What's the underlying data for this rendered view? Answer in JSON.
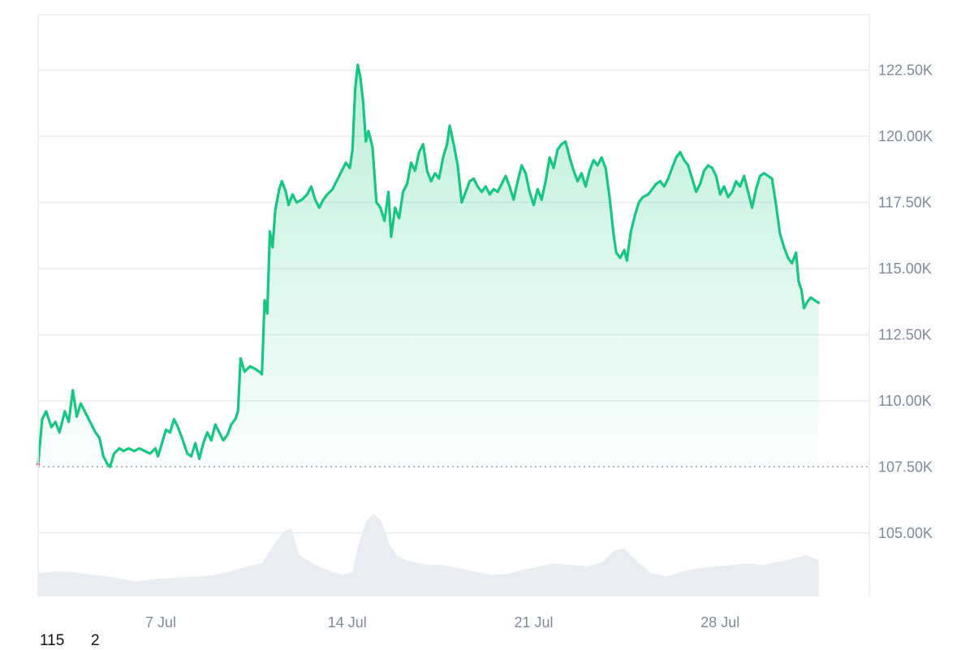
{
  "colors": {
    "line": "#16c784",
    "area_top": "#16c784",
    "grid": "#e9ecf1",
    "baseline": "#9aa2b1",
    "volume": "#e9ecf1",
    "start_marker": "#ea3943"
  },
  "footer": {
    "value_a": "115",
    "value_b": "2"
  },
  "chart_data": {
    "type": "area",
    "title": "",
    "xlabel": "",
    "ylabel": "",
    "ylim": [
      102600,
      124600
    ],
    "grid": true,
    "baseline_value": 107500,
    "x_ticks": [
      {
        "label": "7 Jul",
        "day": 7
      },
      {
        "label": "14 Jul",
        "day": 14
      },
      {
        "label": "21 Jul",
        "day": 21
      },
      {
        "label": "28 Jul",
        "day": 28
      }
    ],
    "y_ticks": [
      {
        "label": "122.50K",
        "value": 122500
      },
      {
        "label": "120.00K",
        "value": 120000
      },
      {
        "label": "117.50K",
        "value": 117500
      },
      {
        "label": "115.00K",
        "value": 115000
      },
      {
        "label": "112.50K",
        "value": 112500
      },
      {
        "label": "110.00K",
        "value": 110000
      },
      {
        "label": "107.50K",
        "value": 107500
      },
      {
        "label": "105.00K",
        "value": 105000
      }
    ],
    "x_range_days": [
      2.4,
      33.6
    ],
    "series": [
      {
        "type": "line",
        "points": [
          [
            2.4,
            107600
          ],
          [
            2.55,
            109300
          ],
          [
            2.7,
            109600
          ],
          [
            2.9,
            109000
          ],
          [
            3.05,
            109200
          ],
          [
            3.2,
            108800
          ],
          [
            3.4,
            109600
          ],
          [
            3.55,
            109200
          ],
          [
            3.7,
            110400
          ],
          [
            3.85,
            109400
          ],
          [
            4.0,
            109900
          ],
          [
            4.15,
            109600
          ],
          [
            4.35,
            109200
          ],
          [
            4.55,
            108800
          ],
          [
            4.7,
            108600
          ],
          [
            4.85,
            107900
          ],
          [
            5.0,
            107600
          ],
          [
            5.1,
            107500
          ],
          [
            5.25,
            108000
          ],
          [
            5.45,
            108200
          ],
          [
            5.6,
            108100
          ],
          [
            5.8,
            108200
          ],
          [
            6.0,
            108100
          ],
          [
            6.2,
            108200
          ],
          [
            6.4,
            108100
          ],
          [
            6.6,
            108000
          ],
          [
            6.8,
            108200
          ],
          [
            6.9,
            107900
          ],
          [
            7.05,
            108400
          ],
          [
            7.2,
            108900
          ],
          [
            7.35,
            108800
          ],
          [
            7.5,
            109300
          ],
          [
            7.65,
            109000
          ],
          [
            7.8,
            108600
          ],
          [
            8.0,
            108000
          ],
          [
            8.15,
            107900
          ],
          [
            8.3,
            108400
          ],
          [
            8.45,
            107800
          ],
          [
            8.6,
            108400
          ],
          [
            8.75,
            108800
          ],
          [
            8.9,
            108500
          ],
          [
            9.05,
            109100
          ],
          [
            9.2,
            108800
          ],
          [
            9.35,
            108500
          ],
          [
            9.5,
            108700
          ],
          [
            9.65,
            109100
          ],
          [
            9.8,
            109300
          ],
          [
            9.9,
            109600
          ],
          [
            10.0,
            111600
          ],
          [
            10.15,
            111100
          ],
          [
            10.35,
            111300
          ],
          [
            10.55,
            111200
          ],
          [
            10.7,
            111100
          ],
          [
            10.8,
            111000
          ],
          [
            10.9,
            113800
          ],
          [
            11.0,
            113300
          ],
          [
            11.1,
            116400
          ],
          [
            11.2,
            115800
          ],
          [
            11.3,
            117200
          ],
          [
            11.45,
            118000
          ],
          [
            11.55,
            118300
          ],
          [
            11.7,
            117900
          ],
          [
            11.8,
            117400
          ],
          [
            11.95,
            117800
          ],
          [
            12.1,
            117500
          ],
          [
            12.3,
            117600
          ],
          [
            12.5,
            117800
          ],
          [
            12.65,
            118100
          ],
          [
            12.8,
            117600
          ],
          [
            12.95,
            117300
          ],
          [
            13.1,
            117600
          ],
          [
            13.25,
            117800
          ],
          [
            13.45,
            118000
          ],
          [
            13.6,
            118300
          ],
          [
            13.8,
            118700
          ],
          [
            13.95,
            119000
          ],
          [
            14.1,
            118800
          ],
          [
            14.2,
            119500
          ],
          [
            14.3,
            121800
          ],
          [
            14.4,
            122700
          ],
          [
            14.5,
            122200
          ],
          [
            14.6,
            121300
          ],
          [
            14.7,
            119800
          ],
          [
            14.8,
            120200
          ],
          [
            14.95,
            119600
          ],
          [
            15.1,
            117500
          ],
          [
            15.25,
            117300
          ],
          [
            15.4,
            116800
          ],
          [
            15.55,
            117900
          ],
          [
            15.65,
            116200
          ],
          [
            15.8,
            117300
          ],
          [
            15.95,
            116900
          ],
          [
            16.1,
            117900
          ],
          [
            16.25,
            118200
          ],
          [
            16.4,
            119000
          ],
          [
            16.55,
            118700
          ],
          [
            16.7,
            119400
          ],
          [
            16.85,
            119700
          ],
          [
            17.0,
            118700
          ],
          [
            17.15,
            118300
          ],
          [
            17.3,
            118600
          ],
          [
            17.45,
            118400
          ],
          [
            17.6,
            119200
          ],
          [
            17.75,
            119700
          ],
          [
            17.85,
            120400
          ],
          [
            18.0,
            119700
          ],
          [
            18.15,
            118900
          ],
          [
            18.3,
            117500
          ],
          [
            18.45,
            117900
          ],
          [
            18.6,
            118300
          ],
          [
            18.75,
            118400
          ],
          [
            18.9,
            118100
          ],
          [
            19.05,
            117900
          ],
          [
            19.2,
            118100
          ],
          [
            19.35,
            117800
          ],
          [
            19.5,
            118000
          ],
          [
            19.65,
            117900
          ],
          [
            19.8,
            118200
          ],
          [
            19.95,
            118500
          ],
          [
            20.1,
            118100
          ],
          [
            20.25,
            117600
          ],
          [
            20.4,
            118300
          ],
          [
            20.55,
            118900
          ],
          [
            20.7,
            118600
          ],
          [
            20.85,
            117900
          ],
          [
            21.0,
            117400
          ],
          [
            21.15,
            118000
          ],
          [
            21.3,
            117600
          ],
          [
            21.45,
            118300
          ],
          [
            21.6,
            119200
          ],
          [
            21.75,
            118800
          ],
          [
            21.9,
            119500
          ],
          [
            22.05,
            119700
          ],
          [
            22.2,
            119800
          ],
          [
            22.35,
            119200
          ],
          [
            22.5,
            118700
          ],
          [
            22.65,
            118300
          ],
          [
            22.8,
            118600
          ],
          [
            22.95,
            118100
          ],
          [
            23.1,
            118700
          ],
          [
            23.25,
            119100
          ],
          [
            23.4,
            118900
          ],
          [
            23.55,
            119200
          ],
          [
            23.7,
            118800
          ],
          [
            23.85,
            117700
          ],
          [
            24.0,
            116300
          ],
          [
            24.1,
            115600
          ],
          [
            24.25,
            115400
          ],
          [
            24.4,
            115700
          ],
          [
            24.5,
            115300
          ],
          [
            24.65,
            116400
          ],
          [
            24.8,
            117000
          ],
          [
            24.95,
            117500
          ],
          [
            25.1,
            117700
          ],
          [
            25.3,
            117800
          ],
          [
            25.45,
            118000
          ],
          [
            25.6,
            118200
          ],
          [
            25.75,
            118300
          ],
          [
            25.9,
            118100
          ],
          [
            26.05,
            118400
          ],
          [
            26.2,
            118800
          ],
          [
            26.35,
            119200
          ],
          [
            26.5,
            119400
          ],
          [
            26.65,
            119100
          ],
          [
            26.8,
            118900
          ],
          [
            26.95,
            118400
          ],
          [
            27.1,
            117900
          ],
          [
            27.25,
            118200
          ],
          [
            27.4,
            118700
          ],
          [
            27.55,
            118900
          ],
          [
            27.7,
            118800
          ],
          [
            27.85,
            118500
          ],
          [
            28.0,
            117800
          ],
          [
            28.15,
            118100
          ],
          [
            28.3,
            117700
          ],
          [
            28.45,
            117900
          ],
          [
            28.6,
            118300
          ],
          [
            28.75,
            118100
          ],
          [
            28.9,
            118500
          ],
          [
            29.05,
            117900
          ],
          [
            29.2,
            117300
          ],
          [
            29.35,
            118000
          ],
          [
            29.5,
            118500
          ],
          [
            29.65,
            118600
          ],
          [
            29.8,
            118500
          ],
          [
            29.95,
            118400
          ],
          [
            30.1,
            117400
          ],
          [
            30.25,
            116300
          ],
          [
            30.4,
            115800
          ],
          [
            30.55,
            115400
          ],
          [
            30.7,
            115200
          ],
          [
            30.85,
            115600
          ],
          [
            30.95,
            114500
          ],
          [
            31.05,
            114200
          ],
          [
            31.15,
            113500
          ],
          [
            31.25,
            113700
          ],
          [
            31.4,
            113900
          ],
          [
            31.55,
            113800
          ],
          [
            31.7,
            113700
          ]
        ]
      }
    ],
    "volume_profile": [
      [
        2.4,
        0.28
      ],
      [
        3.0,
        0.3
      ],
      [
        3.6,
        0.3
      ],
      [
        4.2,
        0.27
      ],
      [
        4.8,
        0.25
      ],
      [
        5.4,
        0.22
      ],
      [
        6.0,
        0.18
      ],
      [
        6.6,
        0.2
      ],
      [
        7.2,
        0.22
      ],
      [
        7.8,
        0.23
      ],
      [
        8.4,
        0.24
      ],
      [
        9.0,
        0.26
      ],
      [
        9.6,
        0.3
      ],
      [
        10.2,
        0.36
      ],
      [
        10.8,
        0.4
      ],
      [
        11.2,
        0.6
      ],
      [
        11.6,
        0.78
      ],
      [
        11.9,
        0.82
      ],
      [
        12.2,
        0.5
      ],
      [
        12.8,
        0.38
      ],
      [
        13.4,
        0.3
      ],
      [
        13.8,
        0.26
      ],
      [
        14.2,
        0.3
      ],
      [
        14.4,
        0.6
      ],
      [
        14.7,
        0.9
      ],
      [
        15.0,
        1.0
      ],
      [
        15.3,
        0.9
      ],
      [
        15.6,
        0.62
      ],
      [
        15.9,
        0.48
      ],
      [
        16.4,
        0.42
      ],
      [
        17.0,
        0.38
      ],
      [
        17.6,
        0.38
      ],
      [
        18.2,
        0.34
      ],
      [
        18.8,
        0.3
      ],
      [
        19.4,
        0.26
      ],
      [
        20.0,
        0.27
      ],
      [
        20.6,
        0.32
      ],
      [
        21.2,
        0.36
      ],
      [
        21.8,
        0.4
      ],
      [
        22.4,
        0.38
      ],
      [
        23.0,
        0.36
      ],
      [
        23.6,
        0.42
      ],
      [
        24.0,
        0.55
      ],
      [
        24.4,
        0.58
      ],
      [
        24.8,
        0.45
      ],
      [
        25.4,
        0.28
      ],
      [
        26.0,
        0.24
      ],
      [
        26.6,
        0.3
      ],
      [
        27.2,
        0.34
      ],
      [
        27.8,
        0.36
      ],
      [
        28.4,
        0.38
      ],
      [
        29.0,
        0.4
      ],
      [
        29.6,
        0.38
      ],
      [
        30.2,
        0.42
      ],
      [
        30.8,
        0.46
      ],
      [
        31.2,
        0.5
      ],
      [
        31.7,
        0.44
      ]
    ]
  }
}
